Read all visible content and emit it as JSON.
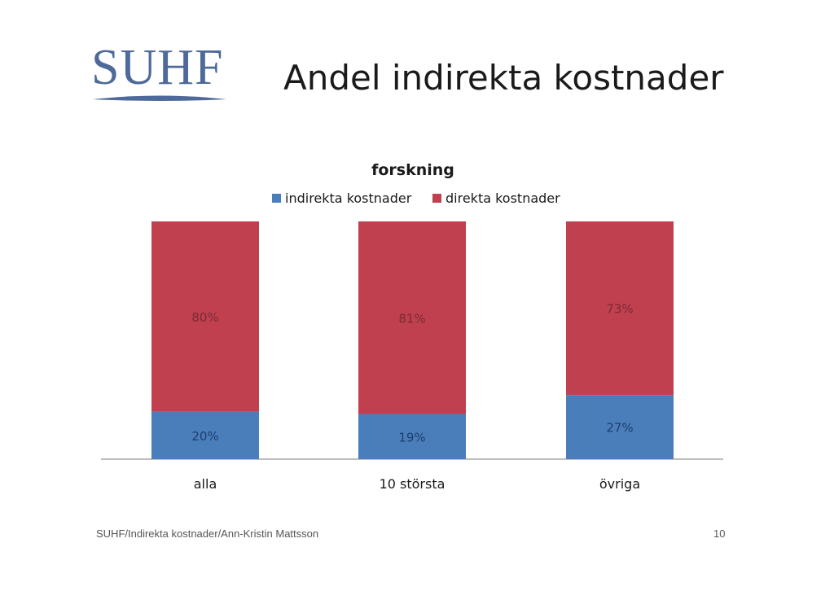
{
  "logo": {
    "text": "SUHF",
    "color": "#4d6a9a"
  },
  "slide": {
    "title": "Andel indirekta kostnader"
  },
  "footer": {
    "text": "SUHF/Indirekta kostnader/Ann-Kristin Mattsson",
    "page": "10"
  },
  "chart_data": {
    "type": "bar",
    "stacked": true,
    "title": "forskning",
    "categories": [
      "alla",
      "10 största",
      "övriga"
    ],
    "series": [
      {
        "name": "indirekta kostnader",
        "values": [
          20,
          19,
          27
        ],
        "labels": [
          "20%",
          "19%",
          "27%"
        ],
        "color": "#4a7ebb"
      },
      {
        "name": "direkta kostnader",
        "values": [
          80,
          81,
          73
        ],
        "labels": [
          "80%",
          "81%",
          "73%"
        ],
        "color": "#c0404f"
      }
    ],
    "ylim": [
      0,
      100
    ],
    "grid": false,
    "legend": "top"
  }
}
